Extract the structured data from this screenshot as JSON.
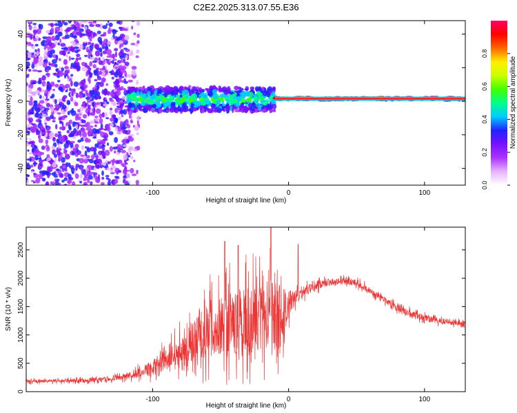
{
  "figure_title": "C2E2.2025.313.07.55.E36",
  "chart_data": [
    {
      "type": "heatmap",
      "name": "spectrogram",
      "xlabel": "Height of straight line (km)",
      "ylabel": "Frequency (Hz)",
      "xlim": [
        -193,
        130
      ],
      "ylim": [
        -50,
        48
      ],
      "xticks": [
        -100,
        0,
        100
      ],
      "yticks": [
        -40,
        -20,
        0,
        20,
        40
      ],
      "colorbar": {
        "label": "Normalized spectral amplitude",
        "range": [
          0.0,
          1.0
        ],
        "ticks": [
          "0.0",
          "0.2",
          "0.4",
          "0.6",
          "0.8"
        ],
        "tick_values": [
          0.0,
          0.2,
          0.4,
          0.6,
          0.8
        ],
        "colors": [
          "#ffffff",
          "#e6b3ff",
          "#aa33ff",
          "#7711ff",
          "#2222ff",
          "#00ccff",
          "#00ff88",
          "#44ff00",
          "#ccff00",
          "#ffee00",
          "#ff6600",
          "#ff0000",
          "#ff0066"
        ]
      },
      "regions": [
        {
          "label": "noise",
          "x": [
            -193,
            -110
          ],
          "y": [
            -50,
            48
          ],
          "amplitude": 0.2
        },
        {
          "label": "dense band",
          "x": [
            -118,
            -10
          ],
          "y": [
            -6,
            8
          ],
          "amplitude": 0.45
        },
        {
          "label": "narrow line",
          "x": [
            -10,
            130
          ],
          "y": [
            0,
            3
          ],
          "amplitude": 0.85
        }
      ]
    },
    {
      "type": "line",
      "name": "snr",
      "xlabel": "Height of straight line (km)",
      "ylabel": "SNR (10 * v/v)",
      "xlim": [
        -193,
        130
      ],
      "ylim": [
        0,
        2900
      ],
      "xticks": [
        -100,
        0,
        100
      ],
      "yticks": [
        0,
        500,
        1000,
        1500,
        2000,
        2500
      ],
      "color": "#ee3333",
      "series": [
        {
          "name": "SNR",
          "x": [
            -193,
            -170,
            -150,
            -130,
            -120,
            -110,
            -100,
            -90,
            -80,
            -70,
            -60,
            -50,
            -40,
            -30,
            -20,
            -10,
            -5,
            0,
            10,
            20,
            30,
            40,
            50,
            60,
            70,
            80,
            90,
            100,
            110,
            120,
            130
          ],
          "envelope": [
            180,
            190,
            200,
            230,
            260,
            330,
            430,
            560,
            700,
            880,
            1060,
            1180,
            1230,
            1280,
            1320,
            1350,
            1400,
            1550,
            1750,
            1870,
            1930,
            1950,
            1920,
            1780,
            1620,
            1480,
            1380,
            1300,
            1250,
            1220,
            1200
          ],
          "spread": [
            60,
            60,
            70,
            80,
            100,
            180,
            280,
            400,
            550,
            750,
            950,
            1100,
            1150,
            1200,
            1250,
            1250,
            1000,
            500,
            200,
            150,
            130,
            120,
            120,
            120,
            120,
            120,
            120,
            110,
            100,
            100,
            100
          ]
        }
      ],
      "peaks": [
        {
          "x": -47,
          "y": 2650
        },
        {
          "x": -37,
          "y": 2580
        },
        {
          "x": -13,
          "y": 2900
        },
        {
          "x": 7,
          "y": 2600
        }
      ]
    }
  ]
}
